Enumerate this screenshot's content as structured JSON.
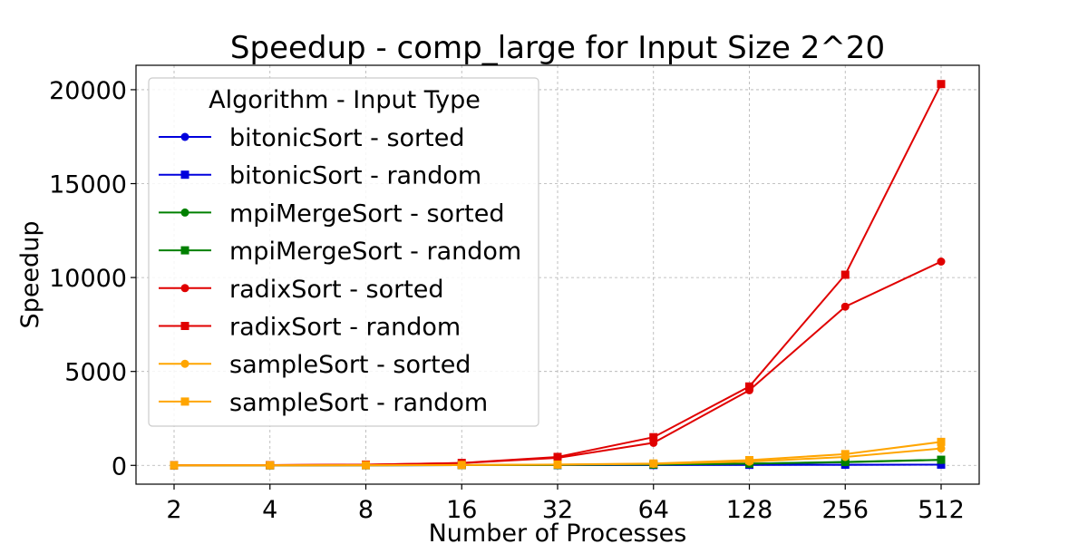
{
  "chart_data": {
    "type": "line",
    "title": "Speedup - comp_large for Input Size 2^20",
    "xlabel": "Number of Processes",
    "ylabel": "Speedup",
    "x": [
      2,
      4,
      8,
      16,
      32,
      64,
      128,
      256,
      512
    ],
    "x_scale": "log2",
    "ylim": [
      -1000,
      21300
    ],
    "yticks": [
      0,
      5000,
      10000,
      15000,
      20000
    ],
    "grid": true,
    "legend": {
      "title": "Algorithm - Input Type",
      "placement": "top-left"
    },
    "series": [
      {
        "name": "bitonicSort - sorted",
        "color": "#0000dd",
        "marker": "circle",
        "values": [
          2,
          4,
          8,
          12,
          18,
          22,
          28,
          32,
          38
        ]
      },
      {
        "name": "bitonicSort - random",
        "color": "#0000dd",
        "marker": "square",
        "values": [
          2,
          4,
          8,
          12,
          18,
          22,
          30,
          34,
          40
        ]
      },
      {
        "name": "mpiMergeSort - sorted",
        "color": "#008000",
        "marker": "circle",
        "values": [
          2,
          4,
          8,
          14,
          25,
          45,
          90,
          170,
          290
        ]
      },
      {
        "name": "mpiMergeSort - random",
        "color": "#008000",
        "marker": "square",
        "values": [
          2,
          4,
          8,
          14,
          25,
          45,
          95,
          180,
          300
        ]
      },
      {
        "name": "radixSort - sorted",
        "color": "#e00000",
        "marker": "circle",
        "values": [
          5,
          15,
          40,
          120,
          400,
          1200,
          4000,
          8450,
          10850
        ]
      },
      {
        "name": "radixSort - random",
        "color": "#e00000",
        "marker": "square",
        "values": [
          5,
          15,
          40,
          130,
          450,
          1500,
          4200,
          10150,
          20300
        ]
      },
      {
        "name": "sampleSort - sorted",
        "color": "#ffa500",
        "marker": "circle",
        "values": [
          2,
          4,
          10,
          20,
          40,
          80,
          200,
          450,
          900
        ]
      },
      {
        "name": "sampleSort - random",
        "color": "#ffa500",
        "marker": "square",
        "values": [
          2,
          4,
          10,
          22,
          45,
          100,
          280,
          600,
          1250
        ]
      }
    ]
  }
}
